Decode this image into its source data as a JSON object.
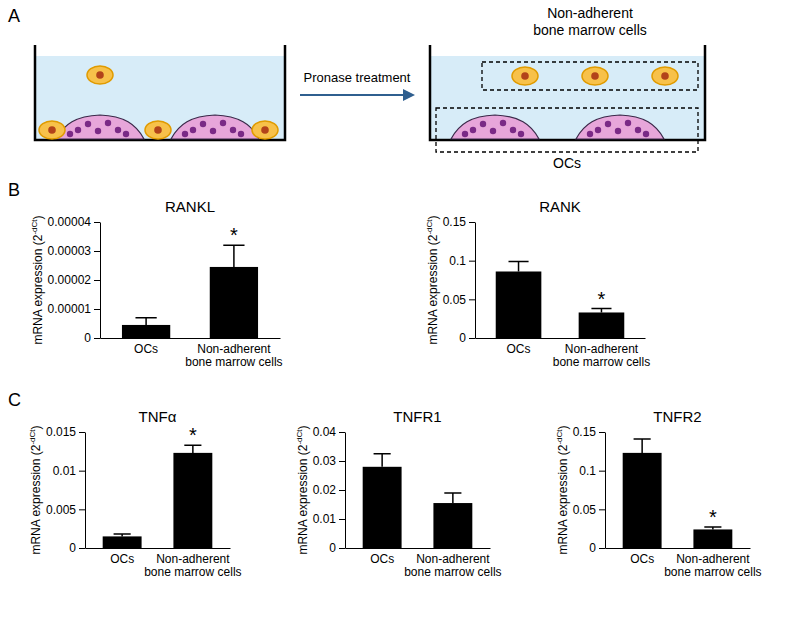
{
  "diagram": {
    "panel_label": "A",
    "arrow_label": "Pronase treatment",
    "top_label": "Non-adherent bone marrow cells",
    "bottom_label": "OCs"
  },
  "chart_data": [
    {
      "type": "bar",
      "panel_label": "B",
      "title": "RANKL",
      "y_label": [
        "mRNA expression (2",
        "-dCt",
        ")"
      ],
      "categories": [
        "OCs",
        "Non-adherent bone marrow cells"
      ],
      "values": [
        4.5e-06,
        2.45e-05
      ],
      "errors": [
        2.5e-06,
        7.5e-06
      ],
      "significance": [
        null,
        "*"
      ],
      "color": "#000000",
      "ylim": [
        0,
        4e-05
      ],
      "yticks": [
        0,
        1e-05,
        2e-05,
        3e-05,
        4e-05
      ]
    },
    {
      "type": "bar",
      "title": "RANK",
      "y_label": [
        "mRNA expression (2",
        "-dCt",
        ")"
      ],
      "categories": [
        "OCs",
        "Non-adherent bone marrow cells"
      ],
      "values": [
        0.086,
        0.033
      ],
      "errors": [
        0.013,
        0.005
      ],
      "significance": [
        null,
        "*"
      ],
      "color": "#000000",
      "ylim": [
        0,
        0.15
      ],
      "yticks": [
        0,
        0.05,
        0.1,
        0.15
      ]
    },
    {
      "type": "bar",
      "panel_label": "C",
      "title": "TNFα",
      "y_label": [
        "mRNA expression (2",
        "-dCt",
        ")"
      ],
      "categories": [
        "OCs",
        "Non-adherent bone marrow cells"
      ],
      "values": [
        0.0015,
        0.0123
      ],
      "errors": [
        0.0003,
        0.001
      ],
      "significance": [
        null,
        "*"
      ],
      "color": "#000000",
      "ylim": [
        0,
        0.015
      ],
      "yticks": [
        0,
        0.005,
        0.01,
        0.015
      ]
    },
    {
      "type": "bar",
      "title": "TNFR1",
      "y_label": [
        "mRNA expression (2",
        "-dCt",
        ")"
      ],
      "categories": [
        "OCs",
        "Non-adherent bone marrow cells"
      ],
      "values": [
        0.028,
        0.0155
      ],
      "errors": [
        0.0045,
        0.0035
      ],
      "significance": [
        null,
        null
      ],
      "color": "#000000",
      "ylim": [
        0,
        0.04
      ],
      "yticks": [
        0,
        0.01,
        0.02,
        0.03,
        0.04
      ]
    },
    {
      "type": "bar",
      "title": "TNFR2",
      "y_label": [
        "mRNA expression (2",
        "-dCt",
        ")"
      ],
      "categories": [
        "OCs",
        "Non-adherent bone marrow cells"
      ],
      "values": [
        0.123,
        0.024
      ],
      "errors": [
        0.018,
        0.003
      ],
      "significance": [
        null,
        "*"
      ],
      "color": "#000000",
      "ylim": [
        0,
        0.15
      ],
      "yticks": [
        0,
        0.05,
        0.1,
        0.15
      ]
    }
  ]
}
